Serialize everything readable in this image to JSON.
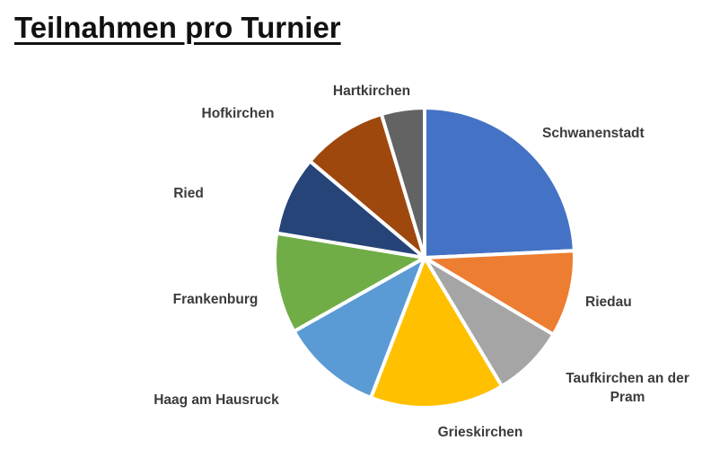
{
  "chart_data": {
    "type": "pie",
    "title": "Teilnahmen pro Turnier",
    "categories": [
      "Schwanenstadt",
      "Riedau",
      "Taufkirchen an der Pram",
      "Grieskirchen",
      "Haag am Hausruck",
      "Frankenburg",
      "Ried",
      "Hofkirchen",
      "Hartkirchen"
    ],
    "label_lines": [
      [
        "Schwanenstadt"
      ],
      [
        "Riedau"
      ],
      [
        "Taufkirchen an der",
        "Pram"
      ],
      [
        "Grieskirchen"
      ],
      [
        "Haag am Hausruck"
      ],
      [
        "Frankenburg"
      ],
      [
        "Ried"
      ],
      [
        "Hofkirchen"
      ],
      [
        "Hartkirchen"
      ]
    ],
    "values": [
      24.5,
      9.4,
      7.9,
      14.6,
      11.1,
      10.9,
      8.6,
      9.3,
      4.7
    ],
    "colors": [
      "#4472C4",
      "#ED7D31",
      "#A5A5A5",
      "#FFC000",
      "#5B9BD5",
      "#70AD47",
      "#264478",
      "#9E480E",
      "#636363"
    ],
    "start_angle": "12 o'clock",
    "direction": "clockwise",
    "legend": "none"
  }
}
